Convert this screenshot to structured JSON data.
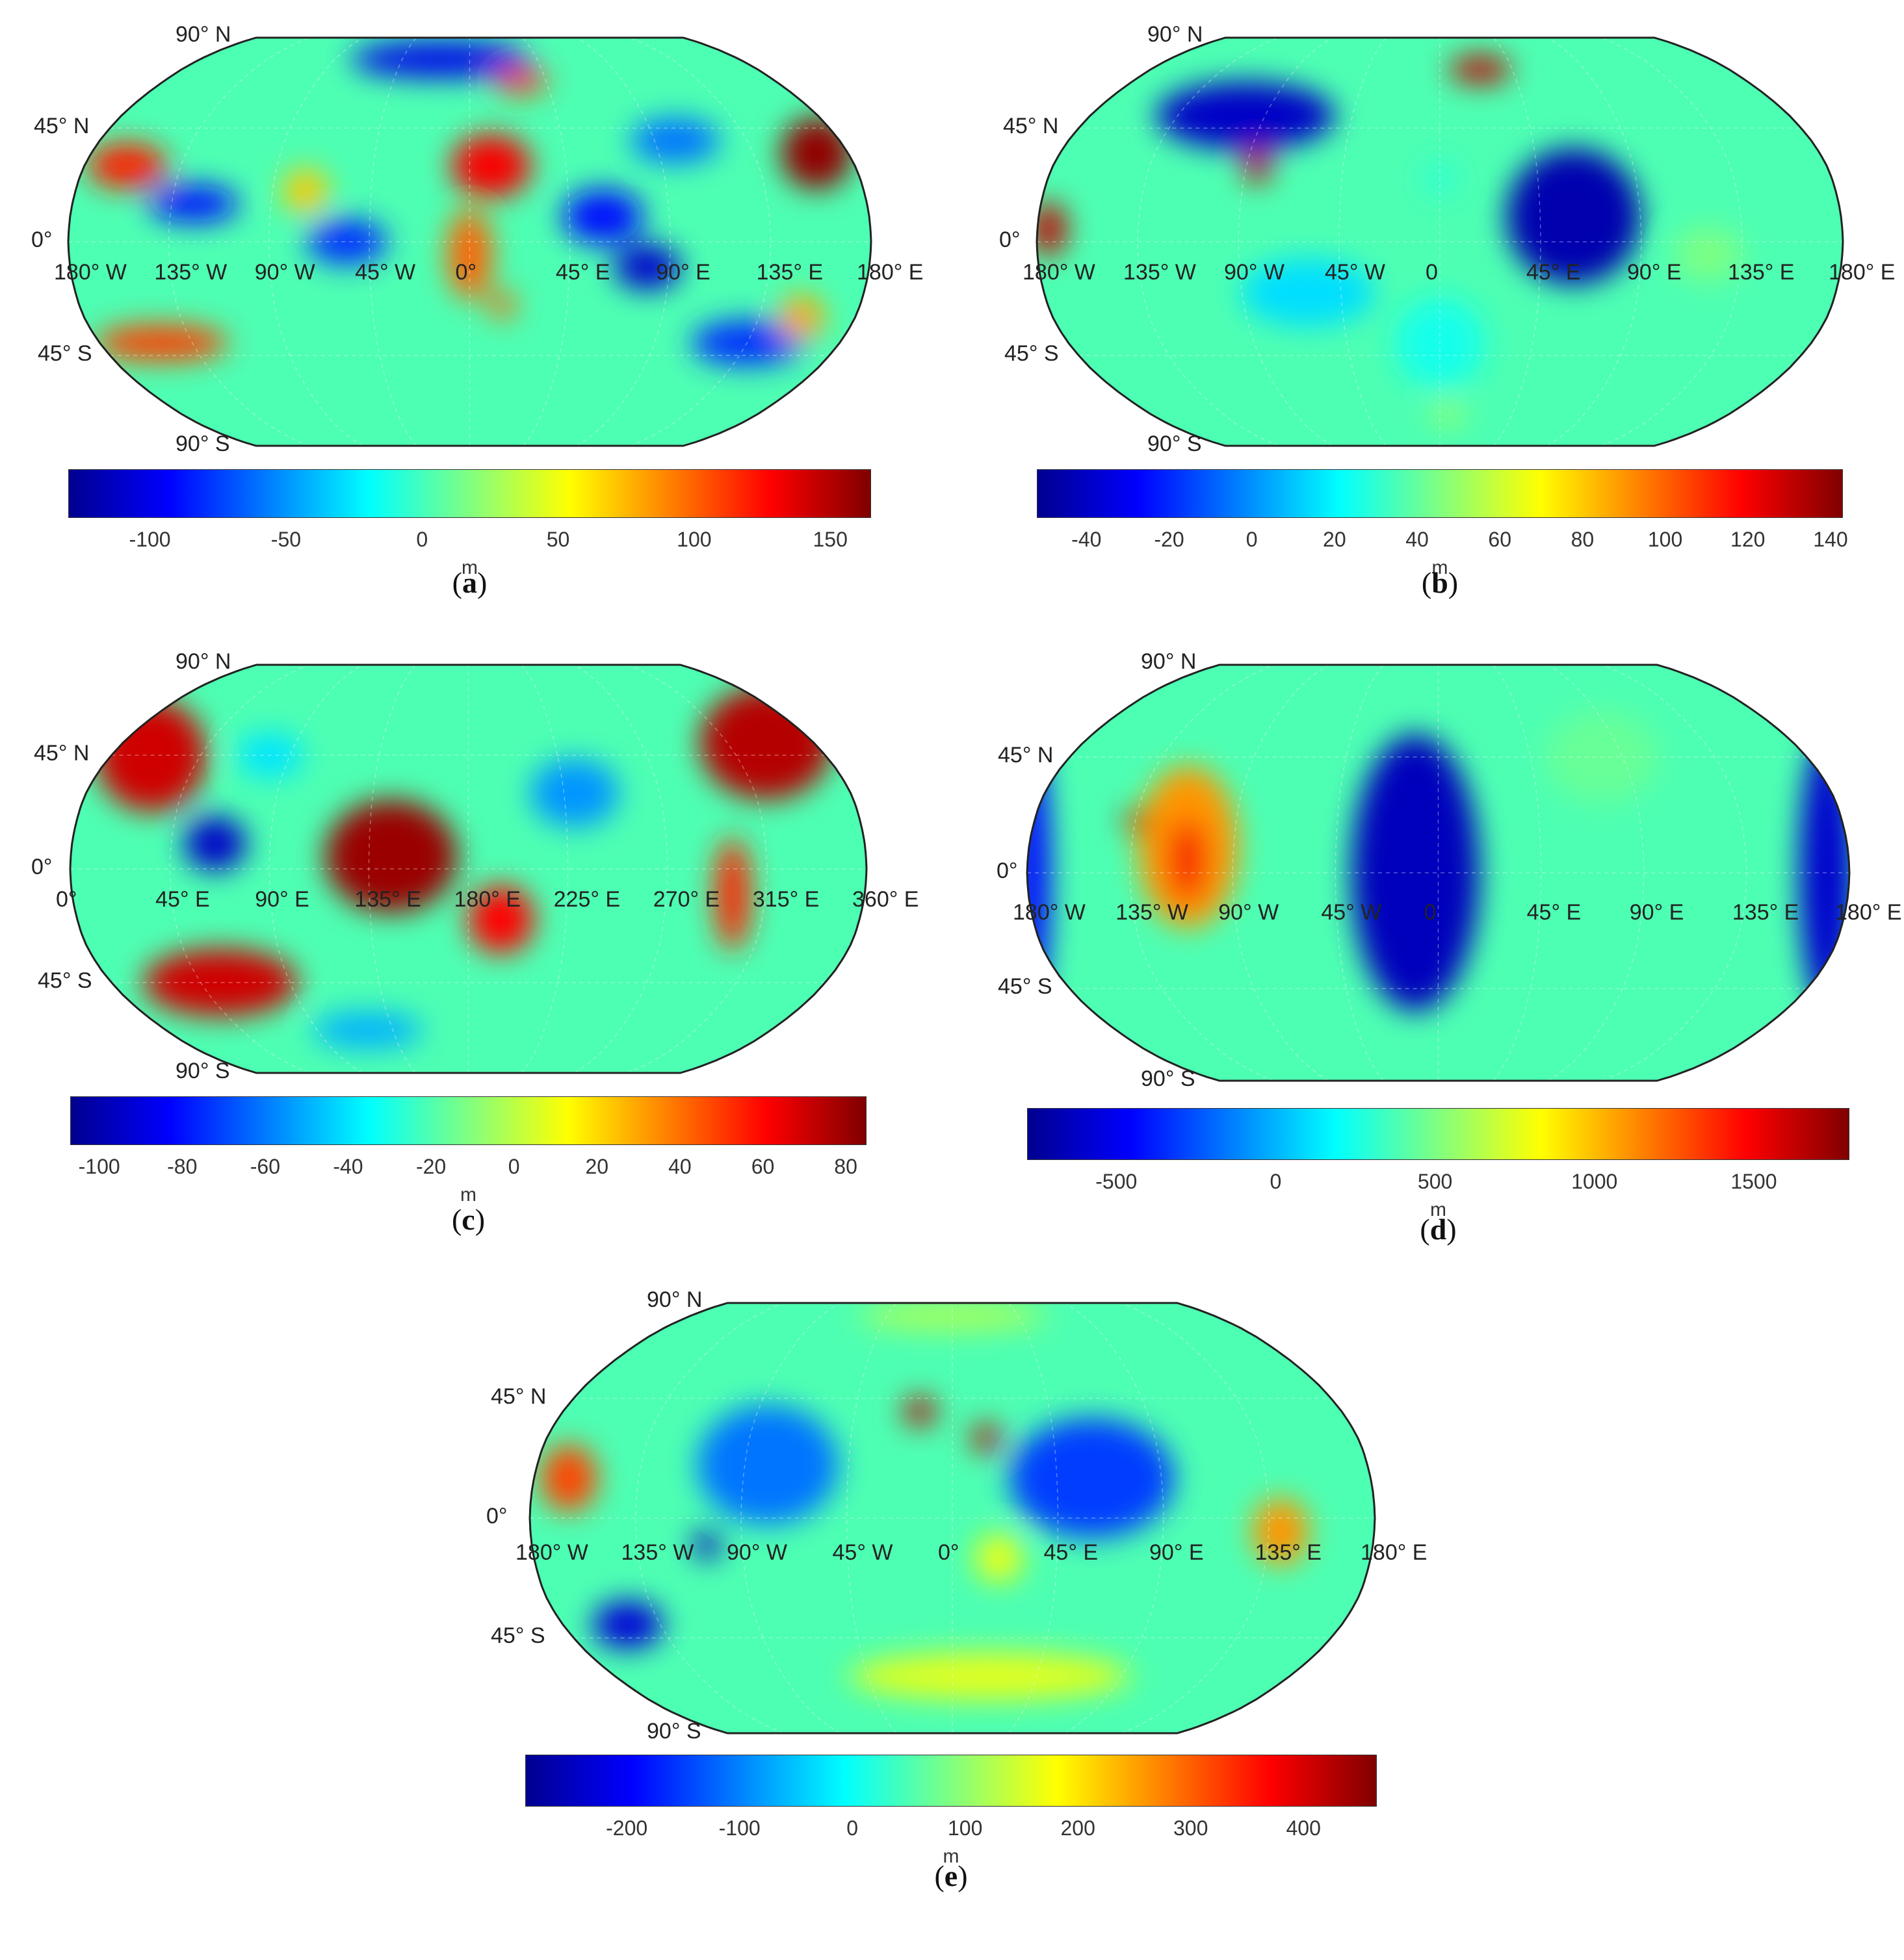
{
  "colormap": [
    "#00008f",
    "#0000ff",
    "#0080ff",
    "#00ffff",
    "#80ff80",
    "#ffff00",
    "#ff8000",
    "#ff0000",
    "#800000"
  ],
  "chart_data": [
    {
      "type": "heatmap",
      "caption_letter": "a",
      "projection": "Robinson",
      "lat_labels": [
        "90° N",
        "45° N",
        "0°",
        "45° S",
        "90° S"
      ],
      "lon_labels": [
        "180° W",
        "135° W",
        "90° W",
        "45° W",
        "0°",
        "45° E",
        "90° E",
        "135° E",
        "180° E"
      ],
      "colorbar": {
        "range": [
          -130,
          165
        ],
        "ticks": [
          -100,
          -50,
          0,
          50,
          100,
          150
        ],
        "tick_labels": [
          "-100",
          "-50",
          "0",
          "50",
          "100",
          "150"
        ],
        "unit": "m"
      },
      "blobs": [
        {
          "lon": -160,
          "lat": 30,
          "value": 120,
          "rx": 18,
          "ry": 10
        },
        {
          "lon": -150,
          "lat": -40,
          "value": 110,
          "rx": 30,
          "ry": 8
        },
        {
          "lon": -125,
          "lat": 15,
          "value": -90,
          "rx": 20,
          "ry": 8
        },
        {
          "lon": -75,
          "lat": 20,
          "value": 70,
          "rx": 10,
          "ry": 10
        },
        {
          "lon": -55,
          "lat": 0,
          "value": -80,
          "rx": 18,
          "ry": 10
        },
        {
          "lon": 10,
          "lat": 30,
          "value": 130,
          "rx": 18,
          "ry": 14
        },
        {
          "lon": 0,
          "lat": -5,
          "value": 100,
          "rx": 10,
          "ry": 20
        },
        {
          "lon": 15,
          "lat": -25,
          "value": 100,
          "rx": 6,
          "ry": 6
        },
        {
          "lon": 30,
          "lat": 65,
          "value": 110,
          "rx": 12,
          "ry": 6
        },
        {
          "lon": 60,
          "lat": 10,
          "value": -90,
          "rx": 18,
          "ry": 12
        },
        {
          "lon": 80,
          "lat": -10,
          "value": -110,
          "rx": 15,
          "ry": 10
        },
        {
          "lon": 100,
          "lat": 40,
          "value": -60,
          "rx": 20,
          "ry": 10
        },
        {
          "lon": 165,
          "lat": 35,
          "value": 160,
          "rx": 16,
          "ry": 16
        },
        {
          "lon": 135,
          "lat": -40,
          "value": -80,
          "rx": 25,
          "ry": 10
        },
        {
          "lon": 155,
          "lat": -30,
          "value": 80,
          "rx": 10,
          "ry": 10
        },
        {
          "lon": -20,
          "lat": 75,
          "value": -100,
          "rx": 40,
          "ry": 8
        }
      ]
    },
    {
      "type": "heatmap",
      "caption_letter": "b",
      "projection": "Robinson",
      "lat_labels": [
        "90° N",
        "45° N",
        "0°",
        "45° S",
        "90° S"
      ],
      "lon_labels": [
        "180° W",
        "135° W",
        "90° W",
        "45° W",
        "0",
        "45° E",
        "90° E",
        "135° E",
        "180° E"
      ],
      "colorbar": {
        "range": [
          -52,
          143
        ],
        "ticks": [
          -40,
          -20,
          0,
          20,
          40,
          60,
          80,
          100,
          120,
          140
        ],
        "tick_labels": [
          "-40",
          "-20",
          "0",
          "20",
          "40",
          "60",
          "80",
          "100",
          "120",
          "140"
        ],
        "unit": "m"
      },
      "blobs": [
        {
          "lon": -175,
          "lat": 5,
          "value": 130,
          "rx": 8,
          "ry": 12
        },
        {
          "lon": -85,
          "lat": 30,
          "value": 130,
          "rx": 6,
          "ry": 8
        },
        {
          "lon": 25,
          "lat": 70,
          "value": 130,
          "rx": 14,
          "ry": 6
        },
        {
          "lon": 0,
          "lat": 25,
          "value": 30,
          "rx": 8,
          "ry": 8
        },
        {
          "lon": 5,
          "lat": -70,
          "value": 50,
          "rx": 8,
          "ry": 5
        },
        {
          "lon": 120,
          "lat": -5,
          "value": 45,
          "rx": 15,
          "ry": 12
        },
        {
          "lon": 0,
          "lat": -40,
          "value": 25,
          "rx": 20,
          "ry": 20
        },
        {
          "lon": -60,
          "lat": -20,
          "value": 15,
          "rx": 30,
          "ry": 15
        },
        {
          "lon": 60,
          "lat": 10,
          "value": -45,
          "rx": 30,
          "ry": 30
        },
        {
          "lon": -100,
          "lat": 50,
          "value": -40,
          "rx": 40,
          "ry": 15
        }
      ]
    },
    {
      "type": "heatmap",
      "caption_letter": "c",
      "projection": "Robinson",
      "lat_labels": [
        "90° N",
        "45° N",
        "0°",
        "45° S",
        "90° S"
      ],
      "lon_labels": [
        "0°",
        "45° E",
        "90° E",
        "135° E",
        "180° E",
        "225° E",
        "270° E",
        "315° E",
        "360° E"
      ],
      "colorbar": {
        "range": [
          -107,
          85
        ],
        "ticks": [
          -100,
          -80,
          -60,
          -40,
          -20,
          0,
          20,
          40,
          60,
          80
        ],
        "tick_labels": [
          "-100",
          "-80",
          "-60",
          "-40",
          "-20",
          "0",
          "20",
          "40",
          "60",
          "80"
        ],
        "unit": "m"
      },
      "blobs": [
        {
          "lon": -160,
          "lat": 45,
          "value": 70,
          "rx": 25,
          "ry": 25
        },
        {
          "lon": 155,
          "lat": 50,
          "value": 75,
          "rx": 30,
          "ry": 25
        },
        {
          "lon": -125,
          "lat": -45,
          "value": 70,
          "rx": 35,
          "ry": 15
        },
        {
          "lon": -115,
          "lat": 10,
          "value": -95,
          "rx": 14,
          "ry": 12
        },
        {
          "lon": -35,
          "lat": 5,
          "value": 80,
          "rx": 30,
          "ry": 25
        },
        {
          "lon": 15,
          "lat": -20,
          "value": 60,
          "rx": 15,
          "ry": 15
        },
        {
          "lon": 120,
          "lat": -10,
          "value": 55,
          "rx": 8,
          "ry": 25
        },
        {
          "lon": 50,
          "lat": 30,
          "value": -55,
          "rx": 20,
          "ry": 15
        },
        {
          "lon": -60,
          "lat": -65,
          "value": -50,
          "rx": 25,
          "ry": 8
        },
        {
          "lon": -100,
          "lat": 45,
          "value": -40,
          "rx": 15,
          "ry": 10
        }
      ]
    },
    {
      "type": "heatmap",
      "caption_letter": "d",
      "projection": "Robinson",
      "lat_labels": [
        "90° N",
        "45° N",
        "0°",
        "45° S",
        "90° S"
      ],
      "lon_labels": [
        "180° W",
        "135° W",
        "90° W",
        "45° W",
        "0",
        "45° E",
        "90° E",
        "135° E",
        "180° E"
      ],
      "colorbar": {
        "range": [
          -780,
          1800
        ],
        "ticks": [
          -500,
          0,
          500,
          1000,
          1500
        ],
        "tick_labels": [
          "-500",
          "0",
          "500",
          "1000",
          "1500"
        ],
        "unit": "m"
      },
      "blobs": [
        {
          "lon": -110,
          "lat": 10,
          "value": 1100,
          "rx": 22,
          "ry": 35
        },
        {
          "lon": -110,
          "lat": 5,
          "value": 1500,
          "rx": 8,
          "ry": 18
        },
        {
          "lon": -135,
          "lat": 20,
          "value": 1650,
          "rx": 5,
          "ry": 5
        },
        {
          "lon": -10,
          "lat": 0,
          "value": -650,
          "rx": 28,
          "ry": 60
        },
        {
          "lon": 80,
          "lat": 45,
          "value": 450,
          "rx": 25,
          "ry": 20
        },
        {
          "lon": 170,
          "lat": 0,
          "value": -600,
          "rx": 12,
          "ry": 60
        },
        {
          "lon": -178,
          "lat": 0,
          "value": -450,
          "rx": 8,
          "ry": 60
        }
      ]
    },
    {
      "type": "heatmap",
      "caption_letter": "e",
      "projection": "Robinson",
      "lat_labels": [
        "90° N",
        "45° N",
        "0°",
        "45° S",
        "90° S"
      ],
      "lon_labels": [
        "180° W",
        "135° W",
        "90° W",
        "45° W",
        "0°",
        "45° E",
        "90° E",
        "135° E",
        "180° E"
      ],
      "colorbar": {
        "range": [
          -290,
          465
        ],
        "ticks": [
          -200,
          -100,
          0,
          100,
          200,
          300,
          400
        ],
        "tick_labels": [
          "-200",
          "-100",
          "0",
          "100",
          "200",
          "300",
          "400"
        ],
        "unit": "m"
      },
      "blobs": [
        {
          "lon": -15,
          "lat": 40,
          "value": 420,
          "rx": 7,
          "ry": 6
        },
        {
          "lon": 15,
          "lat": 30,
          "value": 420,
          "rx": 6,
          "ry": 6
        },
        {
          "lon": -165,
          "lat": 15,
          "value": 320,
          "rx": 12,
          "ry": 14
        },
        {
          "lon": 140,
          "lat": -5,
          "value": 260,
          "rx": 12,
          "ry": 14
        },
        {
          "lon": -105,
          "lat": -10,
          "value": -250,
          "rx": 6,
          "ry": 6
        },
        {
          "lon": -150,
          "lat": -40,
          "value": -230,
          "rx": 15,
          "ry": 10
        },
        {
          "lon": 60,
          "lat": 15,
          "value": -150,
          "rx": 35,
          "ry": 25
        },
        {
          "lon": -80,
          "lat": 20,
          "value": -110,
          "rx": 30,
          "ry": 25
        },
        {
          "lon": 20,
          "lat": -60,
          "value": 160,
          "rx": 60,
          "ry": 10
        },
        {
          "lon": 0,
          "lat": 80,
          "value": 120,
          "rx": 40,
          "ry": 6
        },
        {
          "lon": 20,
          "lat": -15,
          "value": 170,
          "rx": 10,
          "ry": 10
        }
      ]
    }
  ]
}
